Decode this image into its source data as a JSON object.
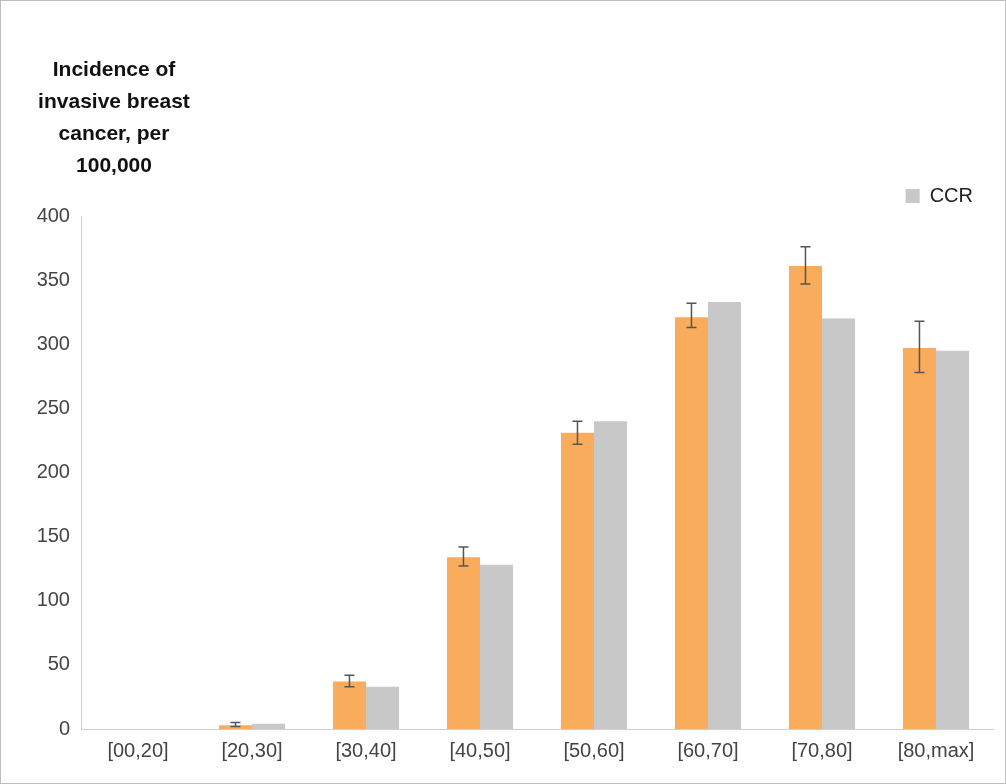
{
  "chart_data": {
    "type": "bar",
    "ylabel": "Incidence of invasive breast cancer, per 100,000",
    "categories": [
      "[00,20]",
      "[20,30]",
      "[30,40]",
      "[40,50]",
      "[50,60]",
      "[60,70]",
      "[70,80]",
      "[80,max]"
    ],
    "series": [
      {
        "color": "#f9ac5b",
        "values": [
          0,
          3,
          37,
          134,
          231,
          321,
          361,
          297
        ],
        "errors": [
          null,
          [
            2,
            5
          ],
          [
            33,
            42
          ],
          [
            127,
            142
          ],
          [
            222,
            240
          ],
          [
            313,
            332
          ],
          [
            347,
            376
          ],
          [
            278,
            318
          ]
        ]
      },
      {
        "name": "CCR",
        "color": "#c8c8c8",
        "values": [
          0,
          4,
          33,
          128,
          240,
          333,
          320,
          295
        ]
      }
    ],
    "ylim": [
      0,
      400
    ],
    "yticks": [
      0,
      50,
      100,
      150,
      200,
      250,
      300,
      350,
      400
    ],
    "grid": false,
    "legend": "top right"
  }
}
